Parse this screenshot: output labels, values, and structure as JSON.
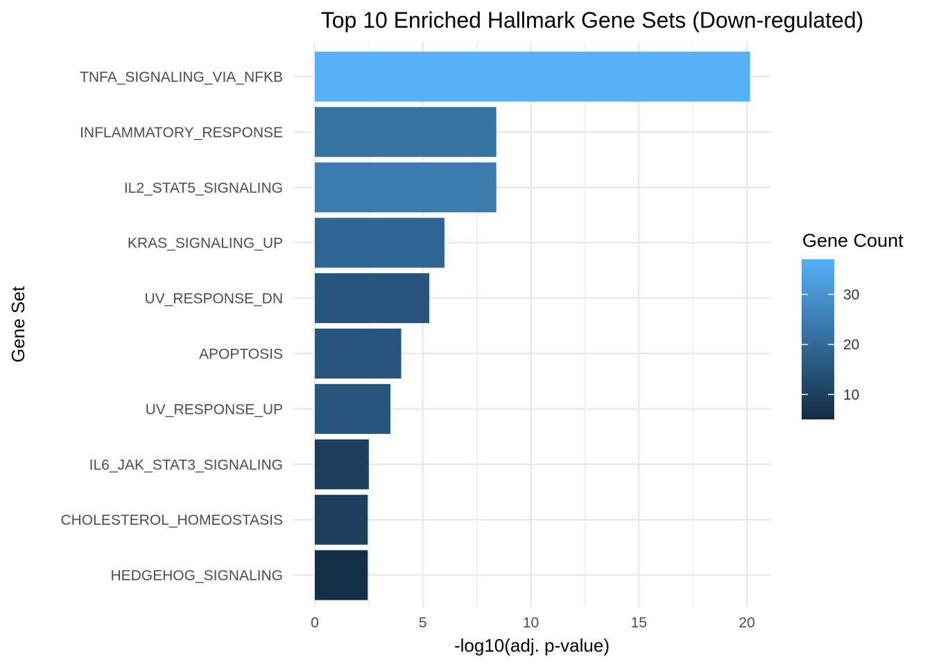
{
  "chart_data": {
    "type": "bar",
    "orientation": "horizontal",
    "title": "Top 10 Enriched Hallmark Gene Sets (Down-regulated)",
    "xlabel": "-log10(adj. p-value)",
    "ylabel": "Gene Set",
    "xlim": [
      0,
      20.9
    ],
    "x_ticks": [
      0,
      5,
      10,
      15,
      20
    ],
    "grid": true,
    "categories": [
      "TNFA_SIGNALING_VIA_NFKB",
      "INFLAMMATORY_RESPONSE",
      "IL2_STAT5_SIGNALING",
      "KRAS_SIGNALING_UP",
      "UV_RESPONSE_DN",
      "APOPTOSIS",
      "UV_RESPONSE_UP",
      "IL6_JAK_STAT3_SIGNALING",
      "CHOLESTEROL_HOMEOSTASIS",
      "HEDGEHOG_SIGNALING"
    ],
    "values": [
      20.15,
      8.4,
      8.4,
      6.0,
      5.3,
      4.0,
      3.5,
      2.5,
      2.45,
      2.45
    ],
    "color_values": [
      37,
      22,
      24,
      19,
      15,
      15,
      15,
      10,
      10,
      6
    ],
    "legend": {
      "title": "Gene Count",
      "placement": "right",
      "ticks": [
        10,
        20,
        30
      ],
      "range": [
        5,
        37
      ],
      "color_low": "#132B43",
      "color_high": "#56B1F7"
    }
  }
}
